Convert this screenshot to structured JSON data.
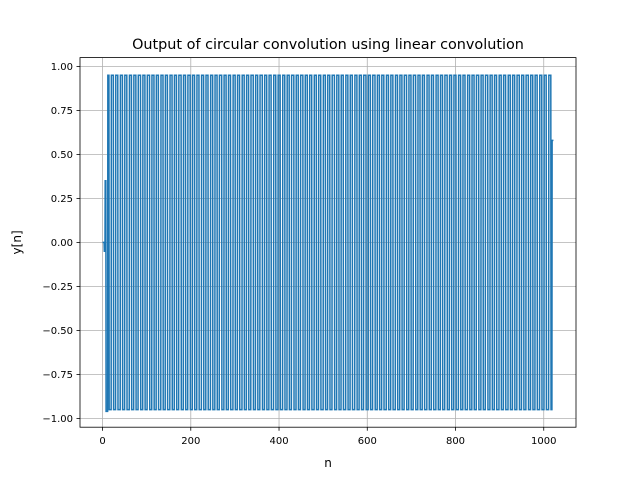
{
  "chart_data": {
    "type": "line",
    "title": "Output of circular convolution using linear convolution",
    "xlabel": "n",
    "ylabel": "y[n]",
    "xlim": [
      -51.1,
      1073.1
    ],
    "ylim": [
      -1.05,
      1.05
    ],
    "xticks": [
      0,
      200,
      400,
      600,
      800,
      1000
    ],
    "xtick_labels": [
      "0",
      "200",
      "400",
      "600",
      "800",
      "1000"
    ],
    "yticks": [
      -1.0,
      -0.75,
      -0.5,
      -0.25,
      0.0,
      0.25,
      0.5,
      0.75,
      1.0
    ],
    "ytick_labels": [
      "−1.00",
      "−0.75",
      "−0.50",
      "−0.25",
      "0.00",
      "0.25",
      "0.50",
      "0.75",
      "1.00"
    ],
    "grid": true,
    "legend": "none",
    "series": [
      {
        "color": "#1f77b4",
        "n_start": 0,
        "n_end": 1022,
        "samples": 1023,
        "cycles": 100,
        "amplitude_steady": 0.95,
        "peak_min": -0.96,
        "end_value": 0.58
      }
    ]
  }
}
